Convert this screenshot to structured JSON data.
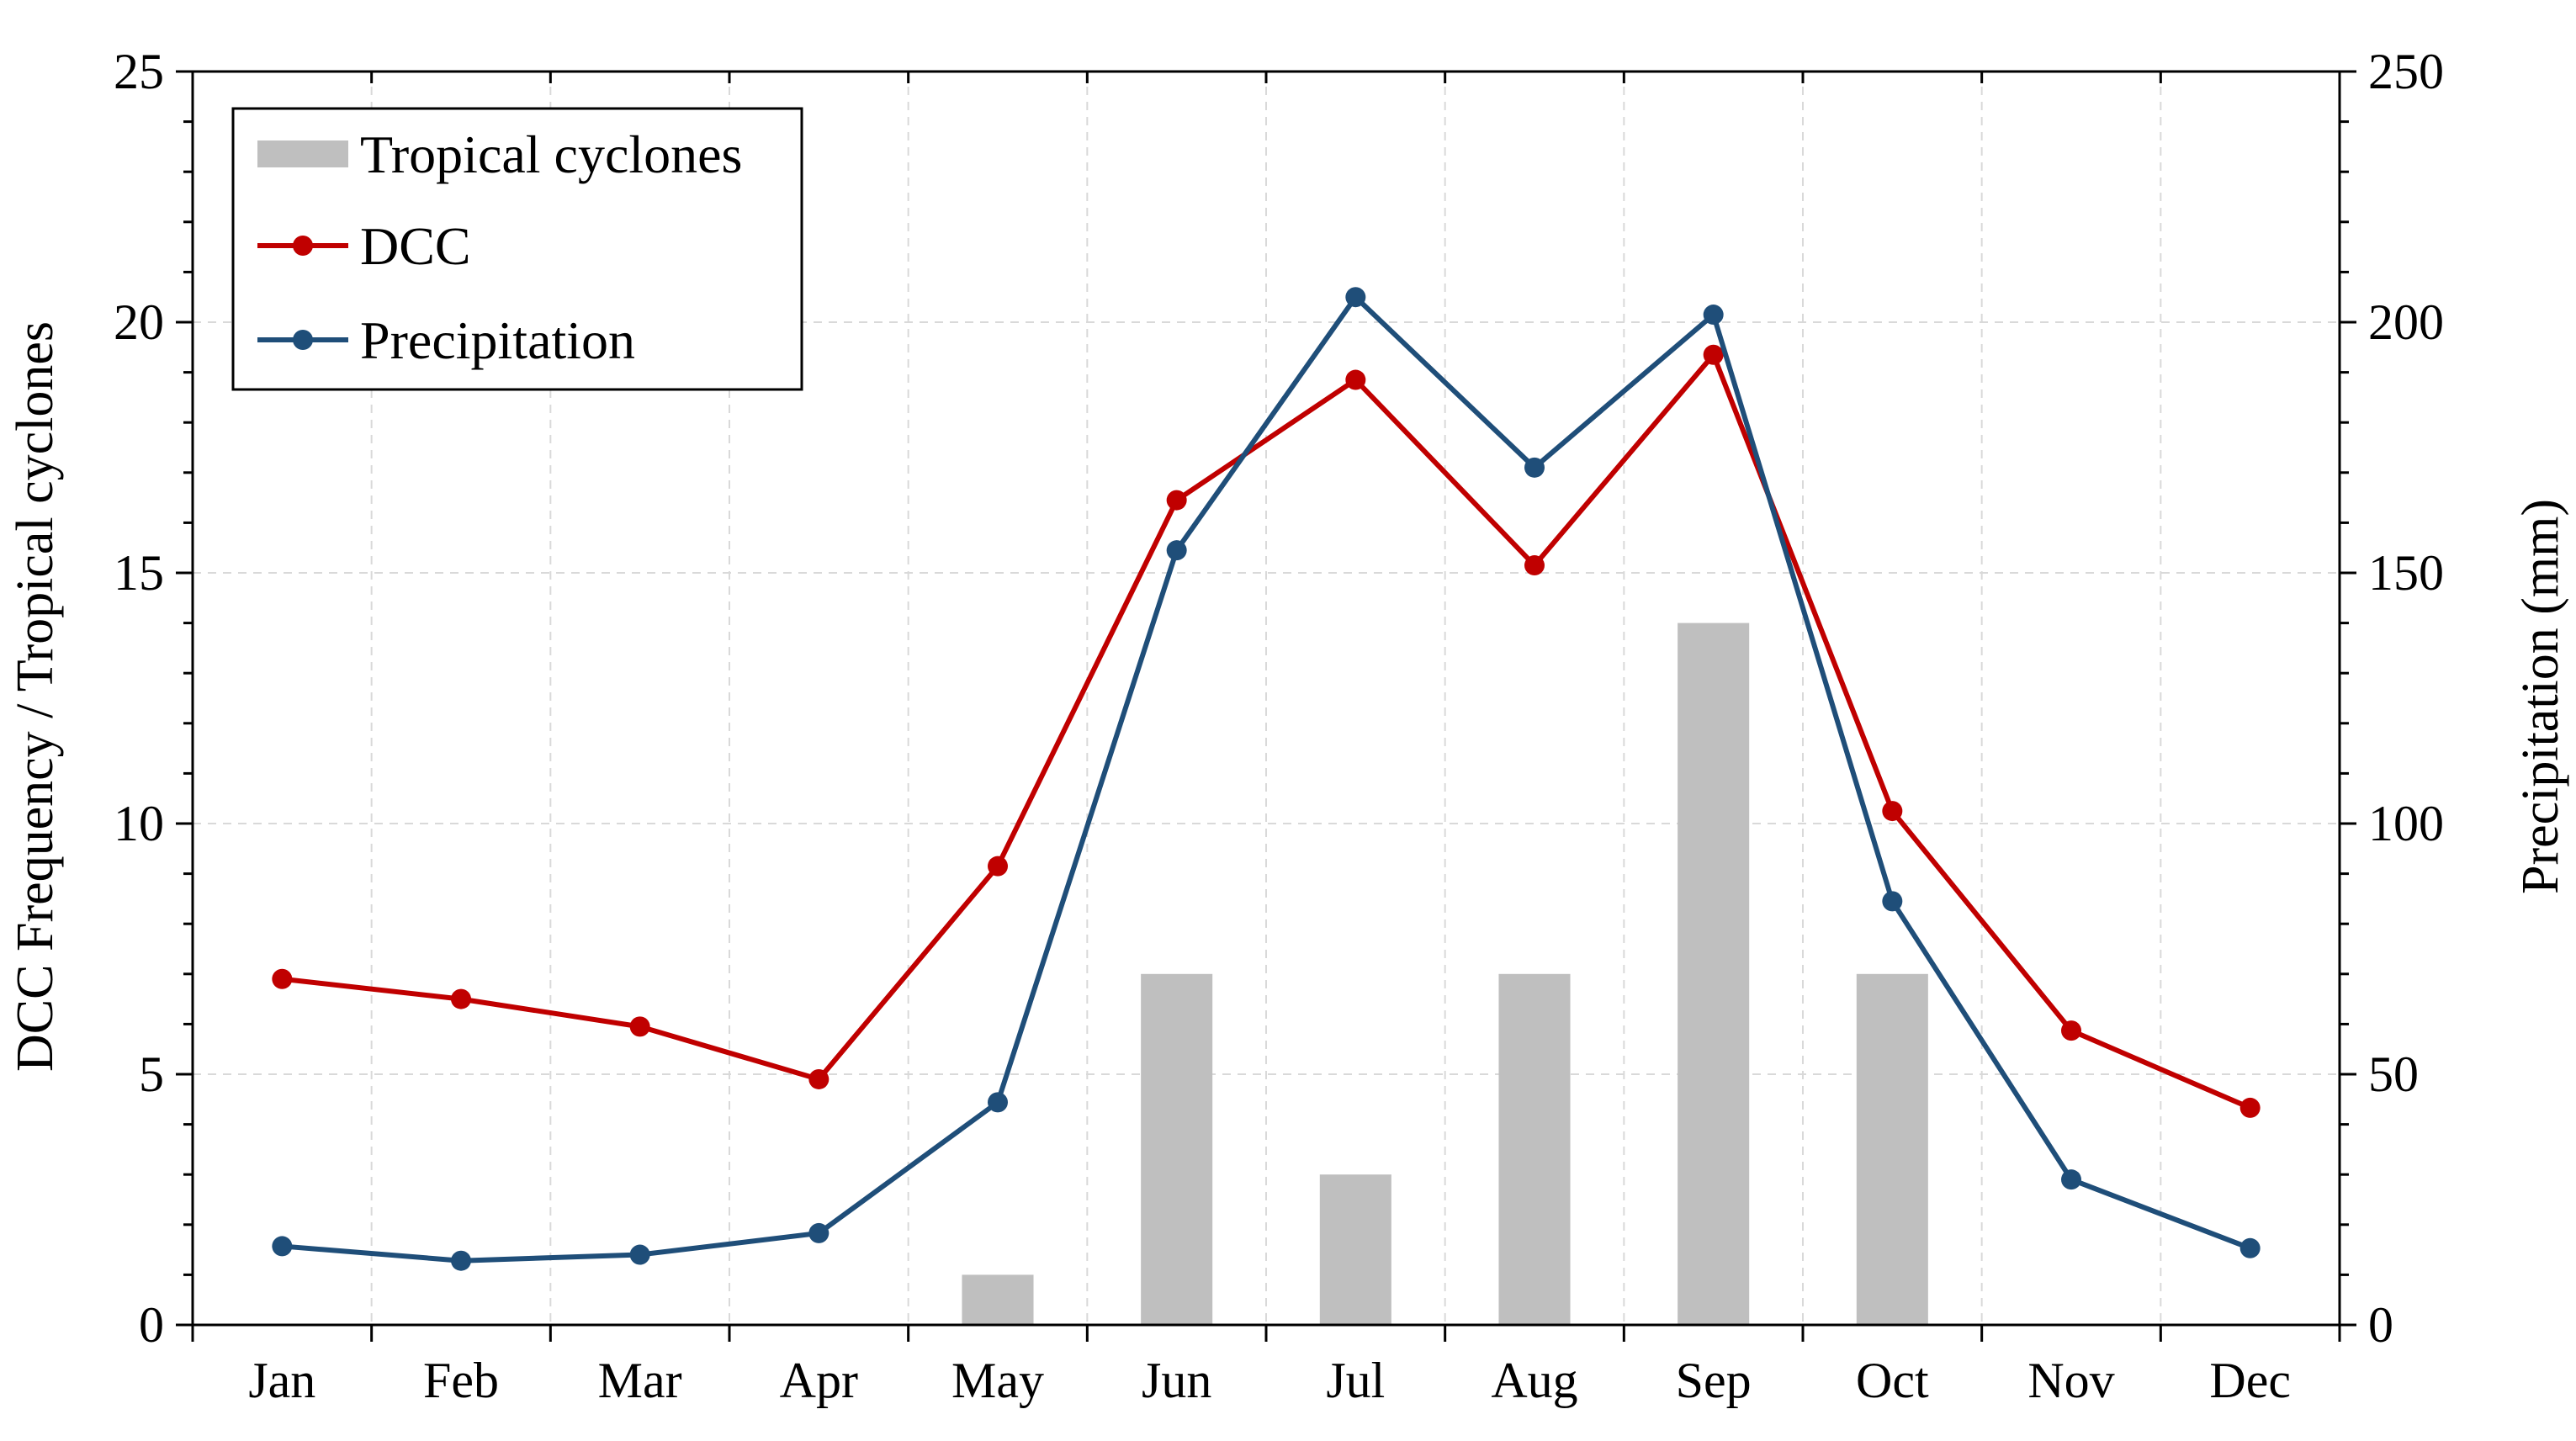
{
  "chart_data": {
    "type": "bar+line",
    "categories": [
      "Jan",
      "Feb",
      "Mar",
      "Apr",
      "May",
      "Jun",
      "Jul",
      "Aug",
      "Sep",
      "Oct",
      "Nov",
      "Dec"
    ],
    "series": [
      {
        "name": "Tropical cyclones",
        "kind": "bar",
        "axis": "left",
        "color": "#bfbfbf",
        "values": [
          0,
          0,
          0,
          0,
          1,
          7,
          3,
          7,
          14,
          7,
          0,
          0
        ]
      },
      {
        "name": "DCC",
        "kind": "line",
        "axis": "left",
        "color": "#c00000",
        "values": [
          6.9,
          6.5,
          5.95,
          4.9,
          9.15,
          16.45,
          18.85,
          15.15,
          19.35,
          10.25,
          5.87,
          4.33
        ]
      },
      {
        "name": "Precipitation",
        "kind": "line",
        "axis": "right",
        "color": "#1f4e79",
        "values": [
          15.7,
          12.8,
          14.0,
          18.3,
          44.4,
          154.5,
          205.0,
          171.0,
          201.5,
          84.5,
          29.0,
          15.3
        ]
      }
    ],
    "ylabel": "DCC Frequency / Tropical cyclones",
    "y2label": "Precipitation (mm)",
    "ylim": [
      0,
      25
    ],
    "y2lim": [
      0,
      250
    ],
    "yticks": [
      "0",
      "5",
      "10",
      "15",
      "20",
      "25"
    ],
    "y2ticks": [
      "0",
      "50",
      "100",
      "150",
      "200",
      "250"
    ],
    "grid": true,
    "legend_position": "top-left"
  }
}
